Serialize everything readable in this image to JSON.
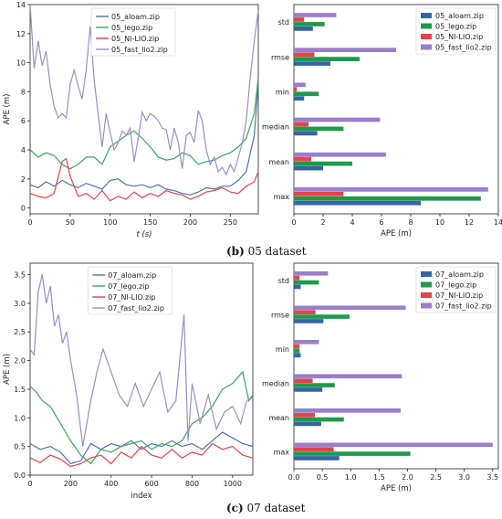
{
  "captions": {
    "b": {
      "letter": "(b)",
      "text": " 05 dataset"
    },
    "c": {
      "letter": "(c)",
      "text": " 07 dataset"
    }
  },
  "chart_data": [
    {
      "id": "line05",
      "type": "line",
      "xlabel": "t (s)",
      "ylabel": "APE (m)",
      "xlim": [
        0,
        285
      ],
      "ylim": [
        -0.4,
        14
      ],
      "xticks": [
        0,
        50,
        100,
        150,
        200,
        250
      ],
      "yticks": [
        0,
        2,
        4,
        6,
        8,
        10,
        12,
        14
      ],
      "legend": "top-center",
      "series": [
        {
          "name": "05_aloam.zip",
          "color": "#4c72b0",
          "x": [
            0,
            10,
            20,
            30,
            40,
            50,
            60,
            70,
            80,
            90,
            100,
            110,
            120,
            130,
            140,
            150,
            160,
            170,
            180,
            190,
            200,
            210,
            220,
            230,
            240,
            250,
            260,
            270,
            280,
            285
          ],
          "y": [
            1.6,
            1.4,
            1.8,
            1.5,
            1.9,
            1.6,
            1.4,
            1.7,
            1.5,
            1.3,
            1.9,
            2.0,
            1.6,
            1.5,
            1.6,
            1.4,
            1.6,
            1.3,
            1.2,
            1.0,
            0.9,
            1.1,
            1.4,
            1.3,
            1.5,
            1.5,
            1.9,
            2.5,
            5.0,
            8.5
          ]
        },
        {
          "name": "05_lego.zip",
          "color": "#3aa55d",
          "x": [
            0,
            10,
            20,
            30,
            40,
            50,
            60,
            70,
            80,
            90,
            100,
            110,
            120,
            130,
            140,
            150,
            160,
            170,
            180,
            190,
            200,
            210,
            220,
            230,
            240,
            250,
            260,
            270,
            280,
            285
          ],
          "y": [
            4.0,
            3.5,
            3.8,
            3.6,
            3.0,
            2.7,
            3.0,
            3.5,
            3.5,
            3.0,
            4.2,
            4.6,
            5.0,
            5.3,
            4.8,
            4.2,
            3.5,
            3.3,
            3.4,
            3.8,
            3.6,
            3.0,
            3.2,
            3.3,
            3.6,
            3.8,
            4.2,
            4.8,
            6.5,
            9.0
          ]
        },
        {
          "name": "05_NI-LIO.zip",
          "color": "#e0454a",
          "x": [
            0,
            10,
            20,
            30,
            40,
            45,
            50,
            60,
            70,
            80,
            90,
            100,
            110,
            120,
            130,
            140,
            150,
            160,
            170,
            180,
            190,
            200,
            210,
            220,
            230,
            240,
            250,
            260,
            270,
            280,
            285
          ],
          "y": [
            1.0,
            0.8,
            0.7,
            1.0,
            3.2,
            3.4,
            2.2,
            0.8,
            1.0,
            0.6,
            1.2,
            0.5,
            0.8,
            0.6,
            1.1,
            0.7,
            1.0,
            0.8,
            1.2,
            1.0,
            0.9,
            0.6,
            0.8,
            1.1,
            1.2,
            1.4,
            1.1,
            1.0,
            1.5,
            1.8,
            2.5
          ]
        },
        {
          "name": "05_fast_lio2.zip",
          "color": "#9b8ec7",
          "x": [
            0,
            5,
            10,
            15,
            20,
            25,
            30,
            35,
            40,
            45,
            50,
            55,
            60,
            65,
            70,
            75,
            80,
            85,
            90,
            95,
            100,
            105,
            110,
            115,
            120,
            125,
            130,
            135,
            140,
            145,
            150,
            155,
            160,
            165,
            170,
            175,
            180,
            185,
            190,
            195,
            200,
            205,
            210,
            215,
            220,
            225,
            230,
            235,
            240,
            245,
            250,
            255,
            260,
            265,
            270,
            275,
            280,
            285
          ],
          "y": [
            14.0,
            9.6,
            11.5,
            9.8,
            10.8,
            8.5,
            7.0,
            6.2,
            6.5,
            6.2,
            8.5,
            9.5,
            8.4,
            7.5,
            9.5,
            12.5,
            8.8,
            6.4,
            4.2,
            6.5,
            5.2,
            4.0,
            4.5,
            5.3,
            5.0,
            5.5,
            3.2,
            4.8,
            6.6,
            6.0,
            6.5,
            6.3,
            6.0,
            5.5,
            5.4,
            4.0,
            5.5,
            4.5,
            2.7,
            5.0,
            5.2,
            4.5,
            6.7,
            6.0,
            4.0,
            3.0,
            3.5,
            2.5,
            2.8,
            2.3,
            3.0,
            2.5,
            3.5,
            4.5,
            6.0,
            9.0,
            11.5,
            13.6
          ]
        }
      ]
    },
    {
      "id": "bar05",
      "type": "bar",
      "orientation": "horizontal",
      "xlabel": "APE (m)",
      "categories": [
        "max",
        "mean",
        "median",
        "min",
        "rmse",
        "std"
      ],
      "xlim": [
        0,
        14
      ],
      "xticks": [
        0,
        2,
        4,
        6,
        8,
        10,
        12,
        14
      ],
      "legend": "top-right",
      "series": [
        {
          "name": "05_aloam.zip",
          "color": "#3465a4",
          "values": [
            8.7,
            2.0,
            1.6,
            0.7,
            2.5,
            1.3
          ]
        },
        {
          "name": "05_lego.zip",
          "color": "#1d9a4a",
          "values": [
            12.8,
            4.0,
            3.4,
            1.7,
            4.5,
            2.1
          ]
        },
        {
          "name": "05_NI-LIO.zip",
          "color": "#e0454a",
          "values": [
            3.4,
            1.2,
            1.0,
            0.2,
            1.4,
            0.7
          ]
        },
        {
          "name": "05_fast_lio2.zip",
          "color": "#9b7ecb",
          "values": [
            13.3,
            6.3,
            5.9,
            0.8,
            7.0,
            2.9
          ]
        }
      ]
    },
    {
      "id": "line07",
      "type": "line",
      "xlabel": "index",
      "ylabel": "APE (m)",
      "xlim": [
        0,
        1100
      ],
      "ylim": [
        0,
        3.7
      ],
      "xticks": [
        0,
        200,
        400,
        600,
        800,
        1000
      ],
      "yticks": [
        0.0,
        0.5,
        1.0,
        1.5,
        2.0,
        2.5,
        3.0,
        3.5
      ],
      "legend": "top-center",
      "series": [
        {
          "name": "07_aloam.zip",
          "color": "#4c72b0",
          "x": [
            0,
            50,
            100,
            150,
            200,
            250,
            300,
            350,
            400,
            450,
            500,
            550,
            600,
            650,
            700,
            750,
            800,
            850,
            900,
            950,
            1000,
            1050,
            1100
          ],
          "y": [
            0.55,
            0.45,
            0.5,
            0.4,
            0.2,
            0.25,
            0.55,
            0.45,
            0.55,
            0.5,
            0.6,
            0.45,
            0.55,
            0.5,
            0.6,
            0.5,
            0.55,
            0.45,
            0.6,
            0.75,
            0.65,
            0.55,
            0.5
          ]
        },
        {
          "name": "07_lego.zip",
          "color": "#3aa55d",
          "x": [
            0,
            30,
            60,
            100,
            150,
            200,
            250,
            300,
            350,
            400,
            450,
            500,
            550,
            600,
            650,
            700,
            750,
            800,
            850,
            900,
            950,
            1000,
            1050,
            1080,
            1100
          ],
          "y": [
            1.55,
            1.45,
            1.3,
            1.2,
            0.9,
            0.6,
            0.35,
            0.2,
            0.45,
            0.4,
            0.5,
            0.55,
            0.6,
            0.45,
            0.55,
            0.5,
            0.6,
            0.9,
            1.0,
            1.2,
            1.5,
            1.6,
            1.8,
            1.3,
            1.4
          ]
        },
        {
          "name": "07_NI-LIO.zip",
          "color": "#e0454a",
          "x": [
            0,
            50,
            100,
            150,
            200,
            250,
            300,
            350,
            400,
            450,
            500,
            550,
            600,
            650,
            700,
            750,
            800,
            850,
            900,
            950,
            1000,
            1050,
            1100
          ],
          "y": [
            0.3,
            0.22,
            0.35,
            0.28,
            0.15,
            0.2,
            0.3,
            0.35,
            0.2,
            0.4,
            0.3,
            0.5,
            0.35,
            0.3,
            0.45,
            0.3,
            0.4,
            0.35,
            0.55,
            0.45,
            0.5,
            0.35,
            0.3
          ]
        },
        {
          "name": "07_fast_lio2.zip",
          "color": "#9b8ec7",
          "x": [
            0,
            20,
            40,
            60,
            80,
            100,
            120,
            140,
            160,
            180,
            200,
            230,
            260,
            300,
            330,
            360,
            400,
            440,
            480,
            520,
            560,
            600,
            640,
            680,
            720,
            760,
            780,
            800,
            840,
            880,
            920,
            960,
            1000,
            1040,
            1070,
            1100
          ],
          "y": [
            2.2,
            2.1,
            3.2,
            3.5,
            3.0,
            3.3,
            2.6,
            2.8,
            2.3,
            2.5,
            2.0,
            1.4,
            0.5,
            1.3,
            1.8,
            2.2,
            1.8,
            1.4,
            1.2,
            1.6,
            1.2,
            1.5,
            1.8,
            1.1,
            1.3,
            2.8,
            0.6,
            1.6,
            0.9,
            1.4,
            0.8,
            1.1,
            1.2,
            0.9,
            1.3,
            1.35
          ]
        }
      ]
    },
    {
      "id": "bar07",
      "type": "bar",
      "orientation": "horizontal",
      "xlabel": "APE (m)",
      "categories": [
        "max",
        "mean",
        "median",
        "min",
        "rmse",
        "std"
      ],
      "xlim": [
        0,
        3.6
      ],
      "xticks": [
        0.0,
        0.5,
        1.0,
        1.5,
        2.0,
        2.5,
        3.0,
        3.5
      ],
      "legend": "top-right",
      "series": [
        {
          "name": "07_aloam.zip",
          "color": "#3465a4",
          "values": [
            0.8,
            0.48,
            0.5,
            0.12,
            0.52,
            0.12
          ]
        },
        {
          "name": "07_lego.zip",
          "color": "#1d9a4a",
          "values": [
            2.05,
            0.88,
            0.72,
            0.1,
            0.98,
            0.44
          ]
        },
        {
          "name": "07_NI-LIO.zip",
          "color": "#e0454a",
          "values": [
            0.7,
            0.37,
            0.33,
            0.1,
            0.38,
            0.1
          ]
        },
        {
          "name": "07_fast_lio2.zip",
          "color": "#9b7ecb",
          "values": [
            3.5,
            1.88,
            1.9,
            0.44,
            1.97,
            0.6
          ]
        }
      ]
    }
  ]
}
